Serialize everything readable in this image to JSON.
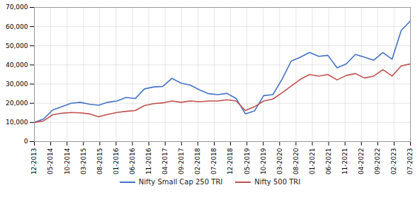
{
  "chart_data": {
    "type": "line",
    "x": [
      0,
      1,
      2,
      3,
      4,
      5,
      6,
      7,
      8,
      9,
      10,
      11,
      12,
      13,
      14,
      15,
      16,
      17,
      18,
      19,
      20,
      21,
      22,
      23,
      24,
      25,
      26,
      27,
      28,
      29,
      30,
      31,
      32,
      33,
      34,
      35,
      36,
      37,
      38,
      39,
      40,
      41
    ],
    "series": [
      {
        "name": "Nifty Small Cap 250 TRI",
        "color": "#4472C4",
        "values": [
          10000,
          11800,
          16500,
          18200,
          20000,
          20500,
          19500,
          19000,
          20500,
          21200,
          23000,
          22500,
          27500,
          28500,
          28800,
          33000,
          30500,
          29500,
          27000,
          25000,
          24500,
          25200,
          22500,
          14500,
          16000,
          24000,
          24500,
          32500,
          42000,
          44000,
          46500,
          44500,
          45000,
          38500,
          40500,
          45500,
          44000,
          42500,
          46500,
          43000,
          58000,
          63000
        ]
      },
      {
        "name": "Nifty 500 TRI",
        "color": "#C0504D",
        "values": [
          10000,
          10800,
          14000,
          14800,
          15200,
          15000,
          14500,
          13000,
          14200,
          15200,
          15800,
          16200,
          18800,
          19800,
          20200,
          21200,
          20500,
          21200,
          20800,
          21200,
          21200,
          21800,
          21200,
          16200,
          18200,
          21200,
          22200,
          25500,
          29000,
          32500,
          35000,
          34200,
          35000,
          32200,
          34500,
          35500,
          33200,
          34200,
          37500,
          34200,
          39500,
          40500
        ]
      }
    ],
    "xlim": [
      0,
      41
    ],
    "xticks": [
      {
        "value": 0,
        "label": "12-2013"
      },
      {
        "value": 1.782608695652174,
        "label": "05-2014"
      },
      {
        "value": 3.565217391304348,
        "label": "10-2014"
      },
      {
        "value": 5.3478260869565215,
        "label": "03-2015"
      },
      {
        "value": 7.130434782608695,
        "label": "08-2015"
      },
      {
        "value": 8.91304347826087,
        "label": "01-2016"
      },
      {
        "value": 10.695652173913043,
        "label": "06-2016"
      },
      {
        "value": 12.478260869565217,
        "label": "11-2016"
      },
      {
        "value": 14.26086956521739,
        "label": "04-2017"
      },
      {
        "value": 16.043478260869566,
        "label": "09-2017"
      },
      {
        "value": 17.82608695652174,
        "label": "02-2018"
      },
      {
        "value": 19.608695652173914,
        "label": "07-2018"
      },
      {
        "value": 21.391304347826086,
        "label": "12-2018"
      },
      {
        "value": 23.17391304347826,
        "label": "05-2019"
      },
      {
        "value": 24.956521739130434,
        "label": "10-2019"
      },
      {
        "value": 26.73913043478261,
        "label": "03-2020"
      },
      {
        "value": 28.52173913043478,
        "label": "08-2020"
      },
      {
        "value": 30.304347826086957,
        "label": "01-2021"
      },
      {
        "value": 32.08695652173913,
        "label": "06-2021"
      },
      {
        "value": 33.869565217391305,
        "label": "11-2021"
      },
      {
        "value": 35.65217391304348,
        "label": "04-2022"
      },
      {
        "value": 37.43478260869565,
        "label": "09-2022"
      },
      {
        "value": 39.21739130434783,
        "label": "02-2023"
      },
      {
        "value": 41,
        "label": "07-2023"
      }
    ],
    "ylim": [
      0,
      70000
    ],
    "yticks": [
      0,
      {
        "value": 10000,
        "label": "10,000"
      },
      {
        "value": 20000,
        "label": "20,000"
      },
      {
        "value": 30000,
        "label": "30,000"
      },
      {
        "value": 40000,
        "label": "40,000"
      },
      {
        "value": 50000,
        "label": "50,000"
      },
      {
        "value": 60000,
        "label": "60,000"
      },
      {
        "value": 70000,
        "label": "70,000"
      }
    ],
    "grid": true,
    "legend": "bottom"
  }
}
